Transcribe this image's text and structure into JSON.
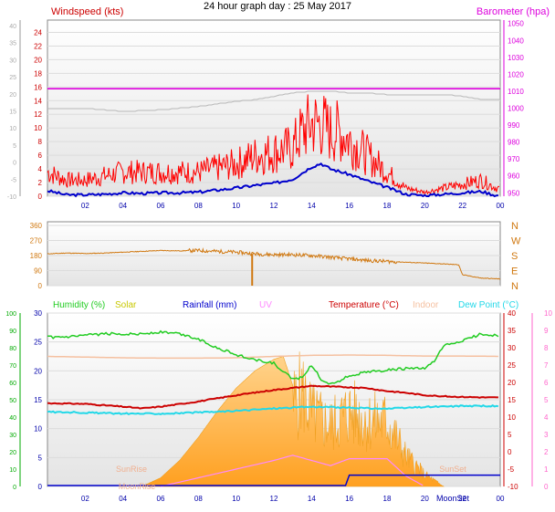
{
  "title": "24 hour graph day : 25 May 2017",
  "colors": {
    "wind": "#ff0000",
    "gust_axis": "#aaaaaa",
    "avg_wind": "#0000cc",
    "baro": "#dd00dd",
    "dir": "#d07810",
    "humidity": "#22cc22",
    "solar": "#ffb020",
    "rain": "#0000cc",
    "uv": "#ff88ff",
    "temp": "#cc0000",
    "indoor": "#f5c0a0",
    "dew": "#22d8e8"
  },
  "x_ticks": [
    "02",
    "04",
    "06",
    "08",
    "10",
    "12",
    "14",
    "16",
    "18",
    "20",
    "22",
    "00"
  ],
  "chart_data": [
    {
      "type": "line",
      "name": "wind",
      "left_axis": {
        "title": "Windspeed (kts)",
        "ticks": [
          "24",
          "22",
          "20",
          "18",
          "16",
          "14",
          "12",
          "10",
          "8",
          "6",
          "4",
          "2",
          "0"
        ],
        "ylim": [
          0,
          25
        ]
      },
      "outer_left_ticks": [
        "40",
        "35",
        "30",
        "25",
        "20",
        "15",
        "10",
        "5",
        "0",
        "-5",
        "-10"
      ],
      "right_axis": {
        "title": "Barometer (hpa)",
        "ticks": [
          "1050",
          "1040",
          "1030",
          "1020",
          "1010",
          "1000",
          "990",
          "980",
          "970",
          "960",
          "950"
        ],
        "ylim": [
          948,
          1052
        ]
      },
      "series": [
        {
          "key": "speed",
          "x": [
            0,
            1,
            2,
            3,
            4,
            5,
            6,
            7,
            8,
            9,
            10,
            11,
            12,
            13,
            13.5,
            14,
            14.5,
            15,
            15.5,
            16,
            17,
            18,
            18.5,
            19,
            20,
            21,
            22,
            23,
            23.8
          ],
          "y": [
            3,
            2,
            2,
            2.5,
            3,
            3,
            3,
            3,
            3,
            3.5,
            4,
            5,
            5.5,
            6,
            8,
            9,
            9,
            8,
            8,
            7,
            5,
            3,
            2,
            1,
            0.5,
            1,
            1.5,
            2,
            1
          ]
        },
        {
          "key": "avg",
          "x": [
            0,
            1,
            2,
            3,
            4,
            5,
            6,
            7,
            8,
            9,
            10,
            11,
            12,
            13,
            13.5,
            14,
            14.5,
            15,
            15.5,
            16,
            17,
            18,
            18.5,
            19,
            20,
            21,
            22,
            23,
            23.8
          ],
          "y": [
            0.8,
            0.2,
            0.2,
            0.3,
            0.5,
            0.4,
            0.5,
            0.5,
            0.6,
            0.9,
            1.2,
            1.6,
            1.9,
            2.5,
            3.4,
            4.3,
            4.8,
            4,
            3.6,
            3.2,
            2.2,
            1.3,
            0.8,
            0.3,
            0.1,
            0.3,
            0.5,
            0.7,
            0.1
          ]
        },
        {
          "key": "barometer",
          "x": [
            0,
            24
          ],
          "y": [
            1011.5,
            1011.5
          ]
        },
        {
          "key": "gust_outer",
          "x": [
            0,
            2,
            4,
            6,
            8,
            10,
            11,
            13,
            14,
            15,
            16,
            17,
            18,
            19,
            20,
            21,
            22,
            23,
            24
          ],
          "y": [
            1000,
            1000,
            998,
            999,
            1001,
            1004,
            1005,
            1009,
            1010,
            1010,
            1009,
            1009,
            1008,
            1008,
            1008,
            1008,
            1007,
            1005,
            1005
          ]
        }
      ]
    },
    {
      "type": "scatter",
      "name": "wind_direction",
      "left_ticks": [
        "360",
        "270",
        "180",
        "90",
        "0"
      ],
      "right_ticks": [
        "N",
        "W",
        "S",
        "E",
        "N"
      ],
      "ylim": [
        0,
        360
      ],
      "x": [
        0,
        1,
        2,
        3,
        4,
        5,
        6,
        7,
        7.5,
        8,
        9,
        10,
        11,
        12,
        13,
        14,
        15,
        16,
        17,
        18,
        19,
        20,
        21,
        21.8,
        22,
        23,
        24
      ],
      "y": [
        190,
        195,
        192,
        195,
        200,
        205,
        210,
        208,
        210,
        210,
        205,
        200,
        190,
        185,
        185,
        180,
        170,
        160,
        150,
        145,
        140,
        135,
        130,
        125,
        65,
        45,
        40
      ]
    },
    {
      "type": "line",
      "name": "temperature_humidity",
      "top_labels": [
        "Humidity (%)",
        "Solar",
        "Rainfall (mm)",
        "UV",
        "Temperature (°C)",
        "Indoor",
        "Dew Point (°C)"
      ],
      "outer_left_ticks": [
        "100",
        "90",
        "80",
        "70",
        "60",
        "50",
        "40",
        "30",
        "20",
        "10",
        "0"
      ],
      "inner_left_ticks": [
        "30",
        "25",
        "20",
        "15",
        "10",
        "5",
        "0"
      ],
      "right_ticks": [
        "40",
        "35",
        "30",
        "25",
        "20",
        "15",
        "10",
        "5",
        "0",
        "-5",
        "-10"
      ],
      "outer_right_ticks": [
        "10",
        "9",
        "8",
        "7",
        "6",
        "5",
        "4",
        "3",
        "2",
        "1",
        "0"
      ],
      "annotations": [
        "SunRise",
        "SunSet",
        "MoonRise",
        "MoonSet"
      ],
      "series": [
        {
          "name": "Humidity (%)",
          "x": [
            0,
            1,
            2,
            3,
            4,
            5,
            6,
            7,
            8,
            9,
            10,
            11,
            12,
            12.5,
            13,
            13.5,
            14,
            14.5,
            15,
            15.5,
            16,
            17,
            18,
            19,
            20,
            20.5,
            21,
            22,
            23,
            24
          ],
          "y": [
            86,
            86,
            87,
            88,
            88,
            88,
            89,
            88,
            85,
            80,
            76,
            73,
            71,
            66,
            62,
            63,
            70,
            62,
            59,
            61,
            64,
            66,
            67,
            68,
            68,
            72,
            81,
            84,
            88,
            87
          ]
        },
        {
          "name": "Temperature (°C)",
          "x": [
            0,
            2,
            4,
            5,
            6,
            8,
            10,
            12,
            14,
            15,
            16,
            17,
            18,
            19,
            20,
            21,
            22,
            23,
            24
          ],
          "y": [
            14,
            13.8,
            13,
            12.5,
            13,
            14.5,
            16.3,
            17.8,
            19,
            18.8,
            18.6,
            18.3,
            17.5,
            17,
            16.3,
            16,
            15.8,
            15.7,
            15.6
          ]
        },
        {
          "name": "Indoor",
          "x": [
            0,
            2,
            4,
            6,
            8,
            10,
            12,
            14,
            16,
            18,
            20,
            22,
            24
          ],
          "y": [
            27.5,
            27.3,
            27.1,
            27.0,
            27.0,
            27.1,
            27.5,
            27.8,
            27.9,
            27.8,
            27.6,
            27.6,
            27.5
          ]
        },
        {
          "name": "Dew Point (°C)",
          "x": [
            0,
            2,
            4,
            6,
            8,
            10,
            12,
            14,
            16,
            18,
            20,
            22,
            24
          ],
          "y": [
            11.5,
            11.3,
            11,
            11,
            11.3,
            11.8,
            12.5,
            13,
            12.7,
            12.4,
            12.9,
            13.2,
            13.2
          ]
        },
        {
          "name": "Solar",
          "x": [
            5,
            6,
            7,
            8,
            9,
            10,
            11,
            12,
            12.5,
            13,
            13.5,
            14,
            15,
            16,
            17,
            18,
            19,
            20,
            21
          ],
          "y": [
            0,
            60,
            180,
            340,
            520,
            680,
            800,
            880,
            900,
            700,
            820,
            620,
            520,
            640,
            560,
            560,
            260,
            100,
            0
          ]
        },
        {
          "name": "Rainfall (mm)",
          "x": [
            0,
            15.8,
            16.0,
            24
          ],
          "y": [
            0,
            0,
            2,
            2
          ]
        },
        {
          "name": "UV",
          "x": [
            6,
            8,
            10,
            12,
            13,
            14,
            15,
            16,
            17,
            18,
            19,
            20
          ],
          "y": [
            0,
            0.5,
            1,
            1.5,
            1.8,
            1.5,
            1.2,
            1.6,
            1.6,
            1.6,
            0.6,
            0
          ]
        }
      ]
    }
  ]
}
